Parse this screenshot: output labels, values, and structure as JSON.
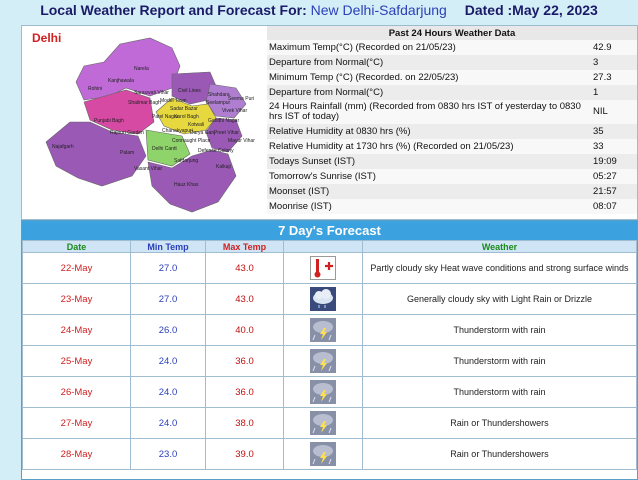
{
  "header": {
    "prefix": "Local Weather Report and Forecast For:",
    "location": "New Delhi-Safdarjung",
    "dated": "Dated :May 22, 2023"
  },
  "map": {
    "title": "Delhi",
    "districts": [
      "Narela",
      "Rohini",
      "Shalimar Bagh",
      "Punjabi Bagh",
      "Rajouri Garden",
      "Civil Lines",
      "Model Town",
      "Seelampur",
      "Shahdara",
      "Preet Vihar",
      "Patel Nagar",
      "Karol Bagh",
      "Kotwali",
      "Connaught Place",
      "Delhi Cantt",
      "Najafgarh",
      "Palam",
      "Vasant Vihar",
      "Hauz Khas",
      "Kalkaji",
      "Defence Colony",
      "Safdarjung",
      "Gandhi Nagar",
      "Vivek Vihar",
      "Seema Puri",
      "Mayur Vihar",
      "Sadar Bazar",
      "Chanakyapuri",
      "Darya Ganj",
      "Kanjhawala",
      "Saraswati Vihar"
    ],
    "colors": {
      "north": "#9b59b6",
      "north_west": "#c06ad8",
      "west": "#d64aa3",
      "south_west": "#9b59b6",
      "central": "#e8d840",
      "south": "#9b59b6",
      "east": "#b07ed0",
      "new_delhi": "#8fd36b"
    }
  },
  "past24": {
    "title": "Past 24 Hours Weather Data",
    "rows": [
      {
        "label": "Maximum Temp(°C) (Recorded on 21/05/23)",
        "value": "42.9"
      },
      {
        "label": "Departure from Normal(°C)",
        "value": "3"
      },
      {
        "label": "Minimum Temp (°C) (Recorded. on 22/05/23)",
        "value": "27.3"
      },
      {
        "label": "Departure from Normal(°C)",
        "value": "1"
      },
      {
        "label": "24 Hours Rainfall (mm) (Recorded from 0830 hrs IST of yesterday to 0830 hrs IST of today)",
        "value": "NIL"
      },
      {
        "label": "Relative Humidity at 0830 hrs (%)",
        "value": "35"
      },
      {
        "label": "Relative Humidity at 1730 hrs (%) (Recorded on 21/05/23)",
        "value": "33"
      },
      {
        "label": "Todays Sunset (IST)",
        "value": "19:09"
      },
      {
        "label": "Tomorrow's Sunrise (IST)",
        "value": "05:27"
      },
      {
        "label": "Moonset (IST)",
        "value": "21:57"
      },
      {
        "label": "Moonrise (IST)",
        "value": "08:07"
      }
    ]
  },
  "forecast": {
    "title": "7 Day's Forecast",
    "headers": {
      "date": "Date",
      "min": "Min Temp",
      "max": "Max Temp",
      "weather": "Weather"
    },
    "rows": [
      {
        "date": "22-May",
        "min": "27.0",
        "max": "43.0",
        "icon": "hot-thermometer-icon",
        "weather": "Partly cloudy sky Heat wave conditions and strong surface winds"
      },
      {
        "date": "23-May",
        "min": "27.0",
        "max": "43.0",
        "icon": "cloud-drizzle-icon",
        "weather": "Generally cloudy sky with Light Rain or Drizzle"
      },
      {
        "date": "24-May",
        "min": "26.0",
        "max": "40.0",
        "icon": "thunderstorm-icon",
        "weather": "Thunderstorm with rain"
      },
      {
        "date": "25-May",
        "min": "24.0",
        "max": "36.0",
        "icon": "thunderstorm-icon",
        "weather": "Thunderstorm with rain"
      },
      {
        "date": "26-May",
        "min": "24.0",
        "max": "36.0",
        "icon": "thunderstorm-icon",
        "weather": "Thunderstorm with rain"
      },
      {
        "date": "27-May",
        "min": "24.0",
        "max": "38.0",
        "icon": "thunderstorm-icon",
        "weather": "Rain or Thundershowers"
      },
      {
        "date": "28-May",
        "min": "23.0",
        "max": "39.0",
        "icon": "thunderstorm-icon",
        "weather": "Rain or Thundershowers"
      }
    ]
  }
}
